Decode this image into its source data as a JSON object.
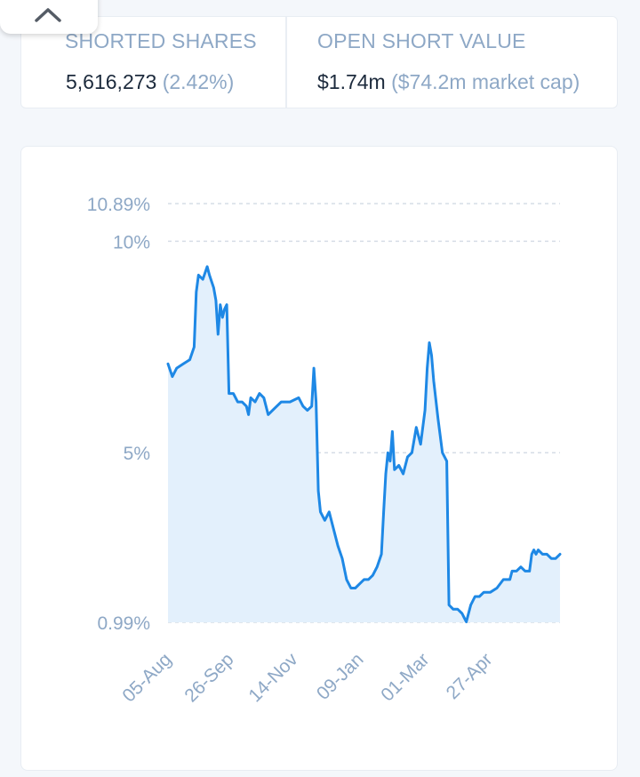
{
  "header": {
    "collapse_icon": "chevron-up-icon"
  },
  "stats": {
    "shorted_shares": {
      "label": "SHORTED SHARES",
      "value": "5,616,273",
      "sub": "(2.42%)"
    },
    "open_short_value": {
      "label": "OPEN SHORT VALUE",
      "value": "$1.74m",
      "sub": "($74.2m market cap)"
    }
  },
  "colors": {
    "line": "#1e88e5",
    "fill": "#e3f0fc",
    "grid": "#d6dde6",
    "tick": "#8ea8c6"
  },
  "chart_data": {
    "type": "area",
    "title": "",
    "xlabel": "",
    "ylabel": "",
    "x_tick_labels": [
      "05-Aug",
      "26-Sep",
      "14-Nov",
      "09-Jan",
      "01-Mar",
      "27-Apr"
    ],
    "y_tick_labels": [
      "10.89%",
      "10%",
      "5%",
      "0.99%"
    ],
    "y_tick_values": [
      10.89,
      10,
      5,
      0.99
    ],
    "ylim": [
      0.99,
      10.89
    ],
    "grid": "horizontal dashed",
    "series": [
      {
        "name": "",
        "points": [
          [
            0,
            7.1
          ],
          [
            2,
            6.8
          ],
          [
            4,
            7.0
          ],
          [
            7,
            7.1
          ],
          [
            10,
            7.2
          ],
          [
            12,
            7.5
          ],
          [
            13,
            8.8
          ],
          [
            14,
            9.2
          ],
          [
            16,
            9.1
          ],
          [
            18,
            9.4
          ],
          [
            19,
            9.2
          ],
          [
            21,
            8.9
          ],
          [
            22,
            8.6
          ],
          [
            23,
            7.8
          ],
          [
            24,
            8.5
          ],
          [
            25,
            8.2
          ],
          [
            26,
            8.4
          ],
          [
            27,
            8.5
          ],
          [
            28,
            6.4
          ],
          [
            30,
            6.4
          ],
          [
            32,
            6.2
          ],
          [
            34,
            6.2
          ],
          [
            36,
            6.1
          ],
          [
            37,
            5.9
          ],
          [
            38,
            6.3
          ],
          [
            40,
            6.2
          ],
          [
            42,
            6.4
          ],
          [
            44,
            6.3
          ],
          [
            46,
            5.9
          ],
          [
            48,
            6.0
          ],
          [
            52,
            6.2
          ],
          [
            56,
            6.2
          ],
          [
            60,
            6.3
          ],
          [
            62,
            6.1
          ],
          [
            64,
            6.0
          ],
          [
            66,
            6.1
          ],
          [
            67,
            7.0
          ],
          [
            68,
            6.2
          ],
          [
            69,
            4.1
          ],
          [
            70,
            3.6
          ],
          [
            72,
            3.4
          ],
          [
            74,
            3.6
          ],
          [
            76,
            3.2
          ],
          [
            78,
            2.8
          ],
          [
            80,
            2.5
          ],
          [
            82,
            2.0
          ],
          [
            84,
            1.8
          ],
          [
            86,
            1.8
          ],
          [
            88,
            1.9
          ],
          [
            90,
            2.0
          ],
          [
            92,
            2.0
          ],
          [
            94,
            2.1
          ],
          [
            96,
            2.3
          ],
          [
            98,
            2.6
          ],
          [
            99,
            3.6
          ],
          [
            100,
            4.5
          ],
          [
            101,
            5.0
          ],
          [
            102,
            4.8
          ],
          [
            103,
            5.5
          ],
          [
            104,
            4.6
          ],
          [
            106,
            4.7
          ],
          [
            108,
            4.5
          ],
          [
            110,
            4.9
          ],
          [
            112,
            5.0
          ],
          [
            114,
            5.6
          ],
          [
            116,
            5.2
          ],
          [
            118,
            6.0
          ],
          [
            119,
            7.0
          ],
          [
            120,
            7.6
          ],
          [
            121,
            7.3
          ],
          [
            122,
            6.7
          ],
          [
            124,
            5.8
          ],
          [
            126,
            5.0
          ],
          [
            128,
            4.8
          ],
          [
            129,
            1.4
          ],
          [
            131,
            1.3
          ],
          [
            133,
            1.3
          ],
          [
            135,
            1.2
          ],
          [
            136,
            1.1
          ],
          [
            137,
            1.0
          ],
          [
            138,
            1.2
          ],
          [
            139,
            1.4
          ],
          [
            141,
            1.6
          ],
          [
            143,
            1.6
          ],
          [
            145,
            1.7
          ],
          [
            148,
            1.7
          ],
          [
            151,
            1.8
          ],
          [
            154,
            2.0
          ],
          [
            157,
            2.0
          ],
          [
            158,
            2.2
          ],
          [
            160,
            2.2
          ],
          [
            162,
            2.3
          ],
          [
            164,
            2.2
          ],
          [
            166,
            2.2
          ],
          [
            167,
            2.6
          ],
          [
            168,
            2.7
          ],
          [
            169,
            2.6
          ],
          [
            170,
            2.7
          ],
          [
            172,
            2.6
          ],
          [
            174,
            2.6
          ],
          [
            176,
            2.5
          ],
          [
            178,
            2.5
          ],
          [
            180,
            2.6
          ]
        ]
      }
    ]
  }
}
